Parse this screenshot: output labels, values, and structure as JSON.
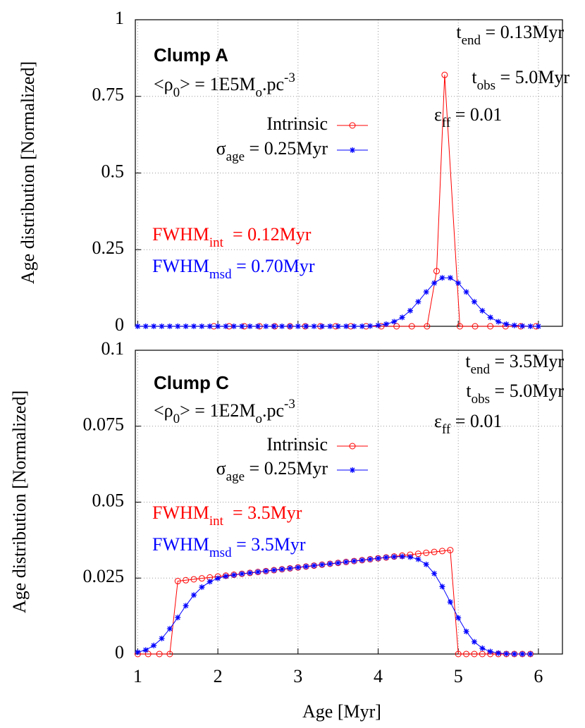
{
  "chart_data": [
    {
      "type": "line",
      "ylabel": "Age distribution [Normalized]",
      "xlim": [
        0.97,
        6.3
      ],
      "xticks": [
        1,
        2,
        3,
        4,
        5,
        6
      ],
      "show_xtick_labels": false,
      "ylim": [
        0,
        1
      ],
      "yticks": [
        0,
        0.25,
        0.5,
        0.75,
        1
      ],
      "grid": true,
      "annotations": [
        {
          "segments": [
            {
              "text": "Clump A"
            }
          ]
        },
        {
          "segments": [
            {
              "text": "<ρ"
            },
            {
              "text": "0",
              "shift": "sub"
            },
            {
              "text": "> = 1E5M"
            },
            {
              "text": "o",
              "shift": "sub"
            },
            {
              "text": ".pc"
            },
            {
              "text": "-3",
              "shift": "super"
            }
          ]
        },
        {
          "segments": [
            {
              "text": "t"
            },
            {
              "text": "end",
              "shift": "sub"
            },
            {
              "text": " = 0.13Myr"
            }
          ]
        },
        {
          "segments": [
            {
              "text": "t"
            },
            {
              "text": "obs",
              "shift": "sub"
            },
            {
              "text": " = 5.0Myr"
            }
          ]
        },
        {
          "segments": [
            {
              "text": "ε"
            },
            {
              "text": "ff",
              "shift": "sub"
            },
            {
              "text": " = 0.01"
            }
          ]
        },
        {
          "color": "#ff0000",
          "segments": [
            {
              "text": "FWHM"
            },
            {
              "text": "int",
              "shift": "sub"
            },
            {
              "text": "  = 0.12Myr"
            }
          ]
        },
        {
          "color": "#0000ff",
          "segments": [
            {
              "text": "FWHM"
            },
            {
              "text": "msd",
              "shift": "sub"
            },
            {
              "text": " = 0.70Myr"
            }
          ]
        }
      ],
      "series": [
        {
          "name": "Intrinsic",
          "color": "#ff0000",
          "marker": "circle",
          "x": [
            1.95,
            2.14,
            2.33,
            2.52,
            2.71,
            2.9,
            3.09,
            3.28,
            3.47,
            3.66,
            3.85,
            4.04,
            4.23,
            4.42,
            4.61,
            4.73,
            4.83,
            5.02,
            5.21,
            5.4,
            5.59,
            5.78,
            5.97
          ],
          "values": [
            0,
            0,
            0,
            0,
            0,
            0,
            0,
            0,
            0,
            0,
            0,
            0,
            0,
            0,
            0,
            0.18,
            0.82,
            0,
            0,
            0,
            0,
            0,
            0
          ]
        },
        {
          "name": [
            {
              "text": "σ"
            },
            {
              "text": "age",
              "shift": "sub"
            },
            {
              "text": " = 0.25Myr"
            }
          ],
          "color": "#0000ff",
          "marker": "star",
          "x": [
            1,
            1.1,
            1.2,
            1.3,
            1.4,
            1.5,
            1.6,
            1.7,
            1.8,
            1.9,
            2,
            2.1,
            2.2,
            2.3,
            2.4,
            2.5,
            2.6,
            2.7,
            2.8,
            2.9,
            3,
            3.1,
            3.2,
            3.3,
            3.4,
            3.5,
            3.6,
            3.7,
            3.8,
            3.9,
            4,
            4.1,
            4.2,
            4.3,
            4.4,
            4.5,
            4.6,
            4.7,
            4.8,
            4.9,
            5,
            5.1,
            5.2,
            5.3,
            5.4,
            5.5,
            5.6,
            5.7,
            5.8,
            5.9,
            6
          ],
          "values": [
            0,
            0,
            0,
            0,
            0,
            0,
            0,
            0,
            0,
            0,
            0,
            0,
            0,
            0,
            0,
            0,
            0,
            0,
            0,
            0,
            0,
            0,
            0,
            0,
            0,
            0,
            0,
            0,
            0,
            0.001,
            0.003,
            0.007,
            0.015,
            0.029,
            0.051,
            0.08,
            0.112,
            0.141,
            0.158,
            0.158,
            0.141,
            0.112,
            0.08,
            0.051,
            0.029,
            0.015,
            0.007,
            0.003,
            0.001,
            0,
            0
          ]
        }
      ]
    },
    {
      "type": "line",
      "ylabel": "Age distribution [Normalized]",
      "xlabel": "Age [Myr]",
      "xlim": [
        0.97,
        6.3
      ],
      "xticks": [
        1,
        2,
        3,
        4,
        5,
        6
      ],
      "show_xtick_labels": true,
      "ylim": [
        0,
        0.1
      ],
      "yticks": [
        0,
        0.025,
        0.05,
        0.075,
        0.1
      ],
      "grid": true,
      "annotations": [
        {
          "segments": [
            {
              "text": "Clump C"
            }
          ]
        },
        {
          "segments": [
            {
              "text": "<ρ"
            },
            {
              "text": "0",
              "shift": "sub"
            },
            {
              "text": "> = 1E2M"
            },
            {
              "text": "o",
              "shift": "sub"
            },
            {
              "text": ".pc"
            },
            {
              "text": "-3",
              "shift": "super"
            }
          ]
        },
        {
          "segments": [
            {
              "text": "t"
            },
            {
              "text": "end",
              "shift": "sub"
            },
            {
              "text": " = 3.5Myr"
            }
          ]
        },
        {
          "segments": [
            {
              "text": "t"
            },
            {
              "text": "obs",
              "shift": "sub"
            },
            {
              "text": " = 5.0Myr"
            }
          ]
        },
        {
          "segments": [
            {
              "text": "ε"
            },
            {
              "text": "ff",
              "shift": "sub"
            },
            {
              "text": " = 0.01"
            }
          ]
        },
        {
          "color": "#ff0000",
          "segments": [
            {
              "text": "FWHM"
            },
            {
              "text": "int",
              "shift": "sub"
            },
            {
              "text": "  = 3.5Myr"
            }
          ]
        },
        {
          "color": "#0000ff",
          "segments": [
            {
              "text": "FWHM"
            },
            {
              "text": "msd",
              "shift": "sub"
            },
            {
              "text": " = 3.5Myr"
            }
          ]
        }
      ],
      "series": [
        {
          "name": "Intrinsic",
          "color": "#ff0000",
          "marker": "circle",
          "x": [
            1,
            1.13,
            1.27,
            1.4,
            1.5,
            1.6,
            1.7,
            1.8,
            1.9,
            2,
            2.1,
            2.2,
            2.3,
            2.4,
            2.5,
            2.6,
            2.7,
            2.8,
            2.9,
            3,
            3.1,
            3.2,
            3.3,
            3.4,
            3.5,
            3.6,
            3.7,
            3.8,
            3.9,
            4,
            4.1,
            4.2,
            4.3,
            4.4,
            4.5,
            4.6,
            4.7,
            4.8,
            4.9,
            5,
            5.1,
            5.2,
            5.3,
            5.4,
            5.5,
            5.6,
            5.7,
            5.8,
            5.9
          ],
          "values": [
            0,
            0,
            0,
            0,
            0.024,
            0.0243,
            0.0246,
            0.0249,
            0.0252,
            0.0255,
            0.0258,
            0.0261,
            0.0264,
            0.0267,
            0.027,
            0.0273,
            0.0276,
            0.0279,
            0.0282,
            0.0285,
            0.0288,
            0.0291,
            0.0294,
            0.0297,
            0.03,
            0.0303,
            0.0306,
            0.0309,
            0.0312,
            0.0315,
            0.0318,
            0.0321,
            0.0324,
            0.0327,
            0.033,
            0.0333,
            0.0336,
            0.0339,
            0.0342,
            0,
            0,
            0,
            0,
            0,
            0,
            0,
            0,
            0,
            0
          ]
        },
        {
          "name": [
            {
              "text": "σ"
            },
            {
              "text": "age",
              "shift": "sub"
            },
            {
              "text": " = 0.25Myr"
            }
          ],
          "color": "#0000ff",
          "marker": "star",
          "x": [
            1,
            1.1,
            1.2,
            1.3,
            1.4,
            1.5,
            1.6,
            1.7,
            1.8,
            1.9,
            2,
            2.1,
            2.2,
            2.3,
            2.4,
            2.5,
            2.6,
            2.7,
            2.8,
            2.9,
            3,
            3.1,
            3.2,
            3.3,
            3.4,
            3.5,
            3.6,
            3.7,
            3.8,
            3.9,
            4,
            4.1,
            4.2,
            4.3,
            4.4,
            4.5,
            4.6,
            4.7,
            4.8,
            4.9,
            5,
            5.1,
            5.2,
            5.3,
            5.4,
            5.5,
            5.6,
            5.7,
            5.8,
            5.9
          ],
          "values": [
            0.0006,
            0.0013,
            0.0028,
            0.0051,
            0.0083,
            0.012,
            0.0159,
            0.0194,
            0.022,
            0.0238,
            0.0249,
            0.0256,
            0.026,
            0.0264,
            0.0267,
            0.027,
            0.0273,
            0.0276,
            0.0279,
            0.0282,
            0.0285,
            0.0288,
            0.0291,
            0.0294,
            0.0297,
            0.03,
            0.0303,
            0.0306,
            0.0309,
            0.0312,
            0.0315,
            0.0318,
            0.032,
            0.0321,
            0.0319,
            0.0312,
            0.0295,
            0.0265,
            0.0222,
            0.0171,
            0.0119,
            0.0074,
            0.004,
            0.0019,
            0.0008,
            0.0003,
            0.0001,
            0,
            0,
            0
          ]
        }
      ]
    }
  ]
}
